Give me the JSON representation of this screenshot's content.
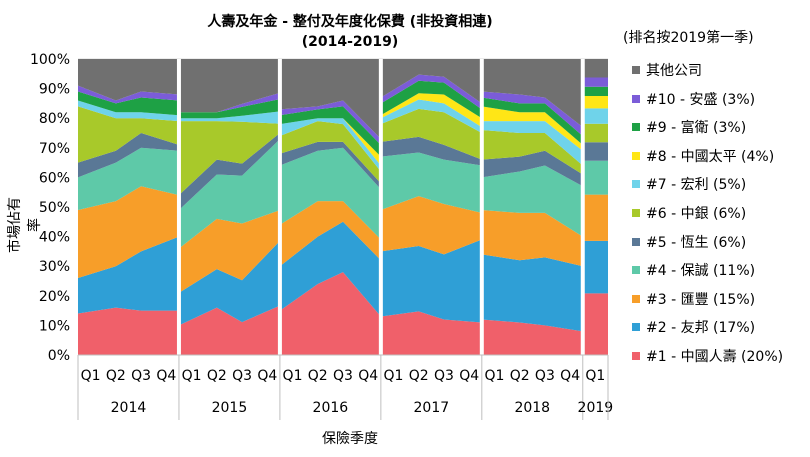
{
  "chart_data": {
    "type": "area",
    "title": "人壽及年金 - 整付及年度化保費 (非投資相連)",
    "subtitle": "(2014-2019)",
    "ylabel": "市場佔有率",
    "xlabel": "保險季度",
    "legend_note": "(排名按2019第一季)",
    "yticks": [
      "0%",
      "10%",
      "20%",
      "30%",
      "40%",
      "50%",
      "60%",
      "70%",
      "80%",
      "90%",
      "100%"
    ],
    "ylim": [
      0,
      100
    ],
    "quarter_labels": [
      "Q1",
      "Q2",
      "Q3",
      "Q4",
      "Q1",
      "Q2",
      "Q3",
      "Q4",
      "Q1",
      "Q2",
      "Q3",
      "Q4",
      "Q1",
      "Q2",
      "Q3",
      "Q4",
      "Q1",
      "Q2",
      "Q3",
      "Q4",
      "Q1"
    ],
    "year_labels": [
      "2014",
      "2015",
      "2016",
      "2017",
      "2018",
      "2019"
    ],
    "year_groups": [
      4,
      4,
      4,
      4,
      4,
      1
    ],
    "legend_position": "right",
    "stacked": true,
    "series": [
      {
        "name": "#1 - 中國人壽 (20%)",
        "color": "#f0606a",
        "values": [
          14,
          16,
          15,
          15,
          10,
          16,
          11,
          16,
          15,
          24,
          28,
          13,
          13,
          14,
          12,
          11,
          12,
          11,
          10,
          8,
          20
        ]
      },
      {
        "name": "#2 - 友邦 (17%)",
        "color": "#2f9fd6",
        "values": [
          12,
          14,
          20,
          25,
          11,
          13,
          14,
          21,
          15,
          16,
          17,
          19,
          22,
          21,
          22,
          28,
          22,
          21,
          23,
          22,
          17
        ]
      },
      {
        "name": "#3 - 匯豐 (15%)",
        "color": "#f79e29",
        "values": [
          23,
          22,
          22,
          14,
          15,
          17,
          19,
          10,
          14,
          12,
          7,
          7,
          14,
          16,
          17,
          9,
          15,
          16,
          15,
          10,
          15
        ]
      },
      {
        "name": "#4 - 保誠 (11%)",
        "color": "#5ec9a8",
        "values": [
          11,
          13,
          13,
          15,
          13,
          15,
          16,
          23,
          20,
          17,
          18,
          17,
          18,
          14,
          15,
          16,
          11,
          14,
          16,
          17,
          11
        ]
      },
      {
        "name": "#5 - 恆生 (6%)",
        "color": "#5a7896",
        "values": [
          5,
          4,
          5,
          2,
          5,
          5,
          4,
          2,
          4,
          3,
          2,
          2,
          5,
          5,
          5,
          2,
          6,
          5,
          5,
          4,
          6
        ]
      },
      {
        "name": "#6 - 中銀 (6%)",
        "color": "#a8c92a",
        "values": [
          19,
          11,
          5,
          8,
          25,
          13,
          14,
          3,
          6,
          7,
          6,
          4,
          6,
          9,
          11,
          9,
          10,
          8,
          6,
          3,
          6
        ]
      },
      {
        "name": "#7 - 宏利 (5%)",
        "color": "#6fd3ea",
        "values": [
          2,
          2,
          2,
          2,
          1,
          1,
          2,
          4,
          4,
          1,
          2,
          2,
          2,
          3,
          3,
          2,
          3,
          4,
          4,
          5,
          5
        ]
      },
      {
        "name": "#8 - 中國太平 (4%)",
        "color": "#ffe616",
        "values": [
          0,
          0,
          0,
          0,
          0,
          0,
          0,
          0,
          0,
          0,
          0,
          3,
          1,
          2,
          3,
          3,
          5,
          3,
          3,
          2,
          4
        ]
      },
      {
        "name": "#9 - 富衛 (3%)",
        "color": "#1ea145",
        "values": [
          3,
          3,
          5,
          5,
          2,
          2,
          3,
          4,
          3,
          3,
          4,
          4,
          4,
          4,
          4,
          3,
          3,
          3,
          3,
          3,
          3
        ]
      },
      {
        "name": "#10 - 安盛 (3%)",
        "color": "#7b5cd8",
        "values": [
          2,
          1,
          2,
          2,
          0,
          0,
          1,
          2,
          2,
          1,
          2,
          2,
          2,
          2,
          2,
          2,
          2,
          3,
          2,
          3,
          3
        ]
      },
      {
        "name": "其他公司",
        "color": "#707070",
        "values": [
          9,
          14,
          11,
          12,
          18,
          18,
          15,
          11,
          17,
          16,
          14,
          27,
          13,
          5,
          6,
          15,
          11,
          12,
          13,
          23,
          6
        ]
      }
    ]
  }
}
